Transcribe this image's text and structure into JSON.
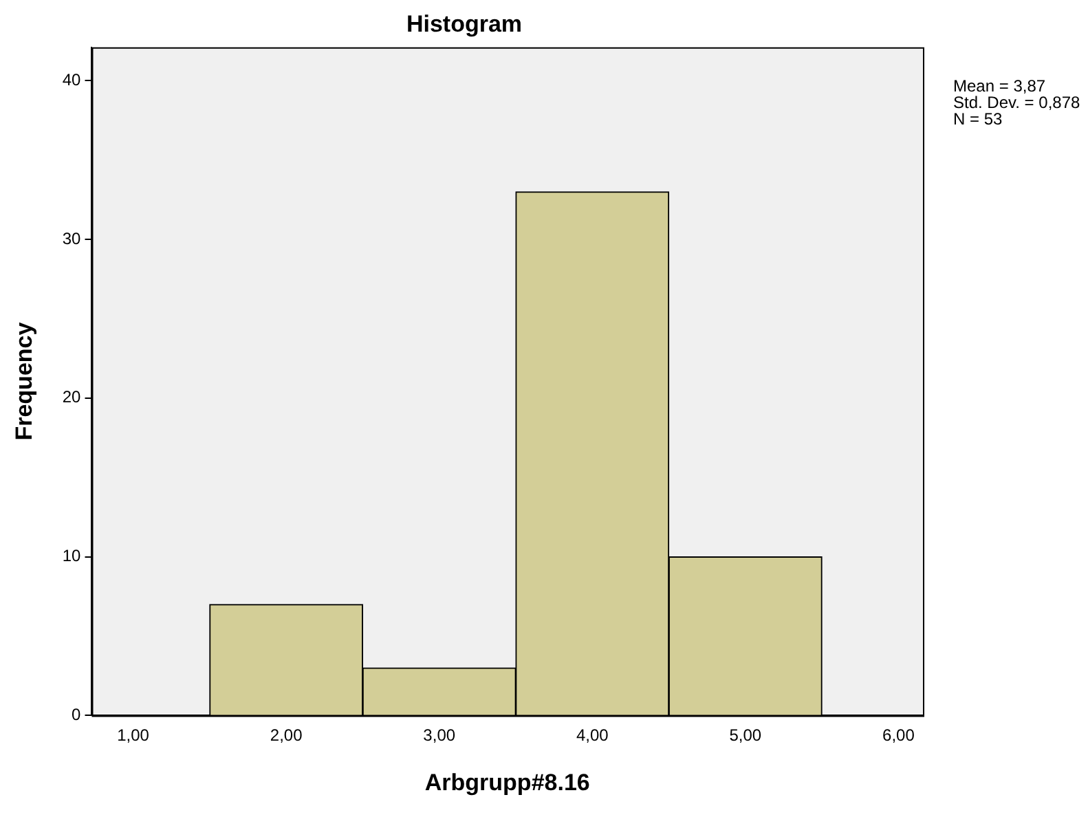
{
  "chart_data": {
    "type": "histogram",
    "title": "Histogram",
    "xlabel": "Arbgrupp#8.16",
    "ylabel": "Frequency",
    "bins": [
      1.5,
      2.5,
      3.5,
      4.5,
      5.5
    ],
    "values": [
      7,
      3,
      33,
      10
    ],
    "color": "#d3ce97",
    "xlim": [
      0.73,
      6.16
    ],
    "xticks": [
      {
        "value": 1,
        "label": "1,00"
      },
      {
        "value": 2,
        "label": "2,00"
      },
      {
        "value": 3,
        "label": "3,00"
      },
      {
        "value": 4,
        "label": "4,00"
      },
      {
        "value": 5,
        "label": "5,00"
      },
      {
        "value": 6,
        "label": "6,00"
      }
    ],
    "ylim": [
      0,
      42.1
    ],
    "yticks": [
      0,
      10,
      20,
      30,
      40
    ],
    "grid": false,
    "legend": false,
    "annotations": [
      "Mean = 3,87",
      "Std. Dev. = 0,878",
      "N = 53"
    ]
  }
}
